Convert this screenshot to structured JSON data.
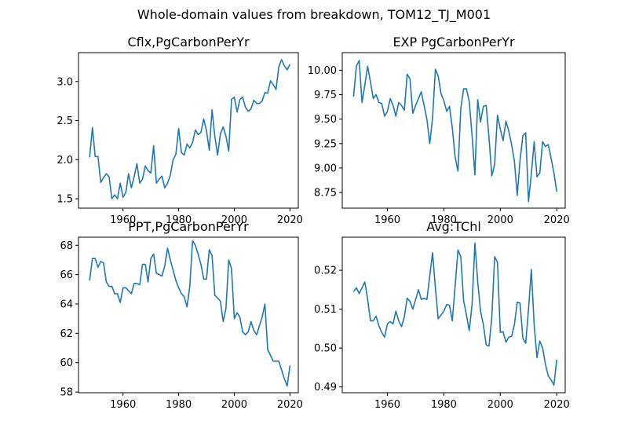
{
  "figure": {
    "suptitle": "Whole-domain values from breakdown, TOM12_TJ_M001"
  },
  "colors": {
    "line": "#1f77b4",
    "axes": "#000000",
    "background": "#ffffff"
  },
  "chart_data": [
    {
      "type": "line",
      "title": "Cflx,PgCarbonPerYr",
      "xlabel": "",
      "ylabel": "",
      "xlim": [
        1944,
        2023
      ],
      "ylim": [
        1.38,
        3.37
      ],
      "xticks": [
        1960,
        1980,
        2000,
        2020
      ],
      "yticks": [
        1.5,
        2.0,
        2.5,
        3.0
      ],
      "ytick_labels": [
        "1.5",
        "2.0",
        "2.5",
        "3.0"
      ],
      "grid": false,
      "series": [
        {
          "x": [
            1948,
            1949,
            1950,
            1951,
            1952,
            1953,
            1954,
            1955,
            1956,
            1957,
            1958,
            1959,
            1960,
            1961,
            1962,
            1963,
            1964,
            1965,
            1966,
            1967,
            1968,
            1969,
            1970,
            1971,
            1972,
            1973,
            1974,
            1975,
            1976,
            1977,
            1978,
            1979,
            1980,
            1981,
            1982,
            1983,
            1984,
            1985,
            1986,
            1987,
            1988,
            1989,
            1990,
            1991,
            1992,
            1993,
            1994,
            1995,
            1996,
            1997,
            1998,
            1999,
            2000,
            2001,
            2002,
            2003,
            2004,
            2005,
            2006,
            2007,
            2008,
            2009,
            2010,
            2011,
            2012,
            2013,
            2014,
            2015,
            2016,
            2017,
            2018,
            2019,
            2020
          ],
          "values": [
            2.03,
            2.41,
            2.04,
            2.04,
            1.71,
            1.77,
            1.82,
            1.78,
            1.5,
            1.55,
            1.5,
            1.7,
            1.52,
            1.58,
            1.82,
            1.64,
            1.78,
            1.95,
            1.7,
            1.75,
            1.92,
            1.86,
            1.83,
            2.18,
            1.7,
            1.75,
            1.79,
            1.64,
            1.7,
            1.8,
            2.0,
            2.07,
            2.4,
            2.09,
            2.06,
            2.2,
            2.15,
            2.22,
            2.38,
            2.32,
            2.35,
            2.52,
            2.37,
            2.12,
            2.64,
            2.3,
            2.06,
            2.33,
            2.42,
            2.3,
            2.11,
            2.77,
            2.8,
            2.61,
            2.77,
            2.8,
            2.67,
            2.62,
            2.65,
            2.76,
            2.72,
            2.72,
            2.75,
            2.86,
            2.85,
            3.01,
            2.96,
            2.9,
            3.19,
            3.28,
            3.2,
            3.15,
            3.22
          ]
        }
      ]
    },
    {
      "type": "line",
      "title": "EXP PgCarbonPerYr",
      "xlabel": "",
      "ylabel": "",
      "xlim": [
        1944,
        2023
      ],
      "ylim": [
        8.59,
        10.18
      ],
      "xticks": [
        1960,
        1980,
        2000,
        2020
      ],
      "yticks": [
        8.75,
        9.0,
        9.25,
        9.5,
        9.75,
        10.0
      ],
      "ytick_labels": [
        "8.75",
        "9.00",
        "9.25",
        "9.50",
        "9.75",
        "10.00"
      ],
      "grid": false,
      "series": [
        {
          "x": [
            1948,
            1949,
            1950,
            1951,
            1952,
            1953,
            1954,
            1955,
            1956,
            1957,
            1958,
            1959,
            1960,
            1961,
            1962,
            1963,
            1964,
            1965,
            1966,
            1967,
            1968,
            1969,
            1970,
            1971,
            1972,
            1973,
            1974,
            1975,
            1976,
            1977,
            1978,
            1979,
            1980,
            1981,
            1982,
            1983,
            1984,
            1985,
            1986,
            1987,
            1988,
            1989,
            1990,
            1991,
            1992,
            1993,
            1994,
            1995,
            1996,
            1997,
            1998,
            1999,
            2000,
            2001,
            2002,
            2003,
            2004,
            2005,
            2006,
            2007,
            2008,
            2009,
            2010,
            2011,
            2012,
            2013,
            2014,
            2015,
            2016,
            2017,
            2018,
            2019,
            2020
          ],
          "values": [
            9.73,
            10.04,
            10.1,
            9.67,
            9.85,
            10.04,
            9.88,
            9.71,
            9.75,
            9.67,
            9.66,
            9.53,
            9.58,
            9.71,
            9.64,
            9.53,
            9.67,
            9.64,
            9.59,
            9.96,
            9.91,
            9.56,
            9.64,
            9.71,
            9.78,
            9.64,
            9.5,
            9.25,
            9.51,
            10.01,
            9.94,
            9.76,
            9.69,
            9.58,
            9.63,
            9.41,
            9.11,
            8.97,
            9.61,
            9.81,
            9.81,
            9.68,
            9.33,
            8.93,
            9.7,
            9.47,
            9.63,
            9.64,
            9.31,
            8.92,
            9.04,
            9.54,
            9.4,
            9.28,
            9.48,
            9.38,
            9.24,
            9.07,
            8.72,
            9.08,
            9.33,
            9.36,
            8.66,
            8.94,
            9.27,
            8.91,
            8.95,
            9.27,
            9.22,
            9.24,
            9.1,
            8.95,
            8.76
          ]
        }
      ]
    },
    {
      "type": "line",
      "title": "PPT,PgCarbonPerYr",
      "xlabel": "",
      "ylabel": "",
      "xlim": [
        1944,
        2023
      ],
      "ylim": [
        57.95,
        68.55
      ],
      "xticks": [
        1960,
        1980,
        2000,
        2020
      ],
      "yticks": [
        58,
        60,
        62,
        64,
        66,
        68
      ],
      "ytick_labels": [
        "58",
        "60",
        "62",
        "64",
        "66",
        "68"
      ],
      "grid": false,
      "series": [
        {
          "x": [
            1948,
            1949,
            1950,
            1951,
            1952,
            1953,
            1954,
            1955,
            1956,
            1957,
            1958,
            1959,
            1960,
            1961,
            1962,
            1963,
            1964,
            1965,
            1966,
            1967,
            1968,
            1969,
            1970,
            1971,
            1972,
            1973,
            1974,
            1975,
            1976,
            1977,
            1978,
            1979,
            1980,
            1981,
            1982,
            1983,
            1984,
            1985,
            1986,
            1987,
            1988,
            1989,
            1990,
            1991,
            1992,
            1993,
            1994,
            1995,
            1996,
            1997,
            1998,
            1999,
            2000,
            2001,
            2002,
            2003,
            2004,
            2005,
            2006,
            2007,
            2008,
            2009,
            2010,
            2011,
            2012,
            2013,
            2014,
            2015,
            2016,
            2017,
            2018,
            2019,
            2020
          ],
          "values": [
            65.6,
            67.1,
            67.1,
            66.5,
            66.9,
            66.8,
            65.5,
            65.2,
            65.2,
            64.7,
            64.7,
            64.1,
            65.1,
            65.1,
            64.9,
            64.7,
            65.4,
            65.4,
            65.3,
            66.7,
            66.7,
            65.5,
            67.1,
            67.4,
            66.1,
            66.0,
            65.9,
            66.6,
            67.8,
            67.0,
            66.3,
            65.6,
            65.1,
            64.7,
            64.5,
            63.8,
            65.2,
            68.3,
            68.0,
            67.4,
            66.7,
            65.7,
            65.7,
            67.7,
            67.3,
            64.6,
            64.4,
            64.2,
            62.8,
            63.7,
            67.0,
            66.4,
            63.0,
            63.4,
            63.1,
            62.1,
            61.9,
            62.1,
            62.8,
            62.2,
            61.9,
            62.5,
            63.1,
            64.0,
            60.9,
            60.5,
            60.1,
            60.1,
            60.1,
            59.5,
            58.9,
            58.4,
            59.8
          ]
        }
      ]
    },
    {
      "type": "line",
      "title": "Avg:TChl",
      "xlabel": "",
      "ylabel": "",
      "xlim": [
        1944,
        2023
      ],
      "ylim": [
        0.4885,
        0.5285
      ],
      "xticks": [
        1960,
        1980,
        2000,
        2020
      ],
      "yticks": [
        0.49,
        0.5,
        0.51,
        0.52
      ],
      "ytick_labels": [
        "0.49",
        "0.50",
        "0.51",
        "0.52"
      ],
      "grid": false,
      "series": [
        {
          "x": [
            1948,
            1949,
            1950,
            1951,
            1952,
            1953,
            1954,
            1955,
            1956,
            1957,
            1958,
            1959,
            1960,
            1961,
            1962,
            1963,
            1964,
            1965,
            1966,
            1967,
            1968,
            1969,
            1970,
            1971,
            1972,
            1973,
            1974,
            1975,
            1976,
            1977,
            1978,
            1979,
            1980,
            1981,
            1982,
            1983,
            1984,
            1985,
            1986,
            1987,
            1988,
            1989,
            1990,
            1991,
            1992,
            1993,
            1994,
            1995,
            1996,
            1997,
            1998,
            1999,
            2000,
            2001,
            2002,
            2003,
            2004,
            2005,
            2006,
            2007,
            2008,
            2009,
            2010,
            2011,
            2012,
            2013,
            2014,
            2015,
            2016,
            2017,
            2018,
            2019,
            2020
          ],
          "values": [
            0.5145,
            0.5155,
            0.514,
            0.5155,
            0.517,
            0.5125,
            0.507,
            0.507,
            0.5082,
            0.5057,
            0.504,
            0.5028,
            0.5062,
            0.5068,
            0.5062,
            0.5095,
            0.507,
            0.5055,
            0.508,
            0.5128,
            0.512,
            0.51,
            0.5125,
            0.515,
            0.5125,
            0.5128,
            0.5125,
            0.5185,
            0.5245,
            0.5155,
            0.5075,
            0.5085,
            0.5095,
            0.5112,
            0.511,
            0.507,
            0.516,
            0.5252,
            0.5235,
            0.5122,
            0.5085,
            0.5045,
            0.5112,
            0.527,
            0.517,
            0.5095,
            0.506,
            0.5008,
            0.5005,
            0.508,
            0.5235,
            0.522,
            0.504,
            0.5042,
            0.5015,
            0.5028,
            0.503,
            0.506,
            0.5118,
            0.5115,
            0.5025,
            0.5012,
            0.51,
            0.5202,
            0.506,
            0.4975,
            0.5018,
            0.5,
            0.4958,
            0.4928,
            0.4918,
            0.4905,
            0.497
          ]
        }
      ]
    }
  ]
}
